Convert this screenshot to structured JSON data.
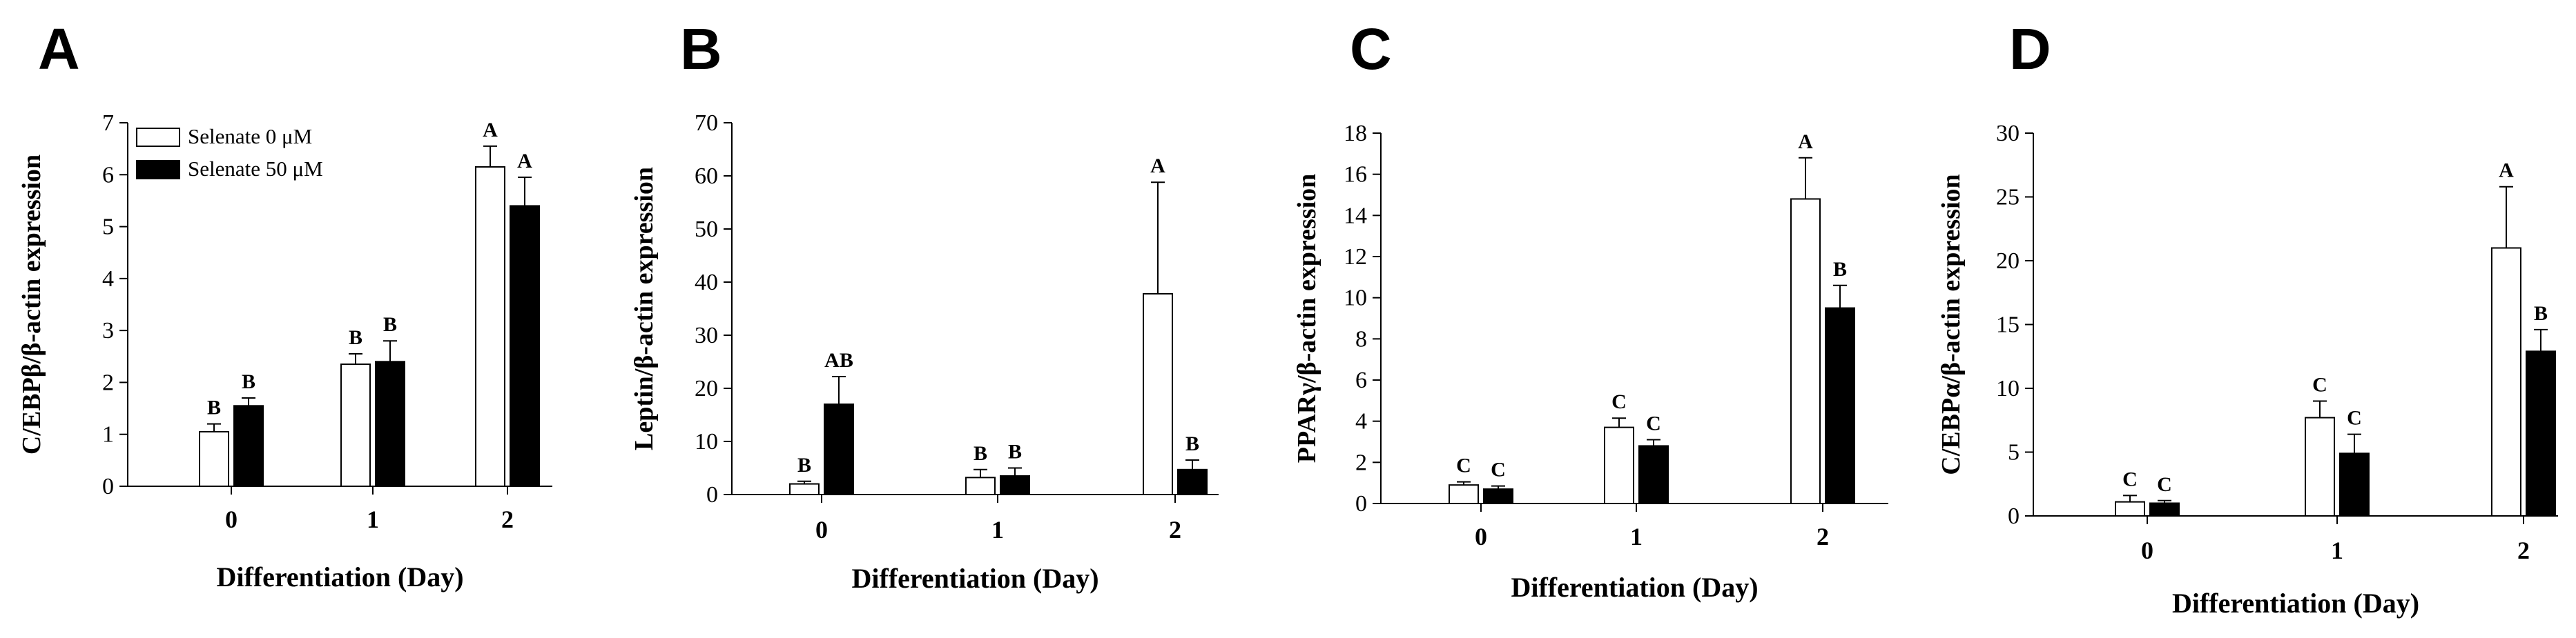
{
  "legend": {
    "items": [
      {
        "label": "Selenate  0 μM",
        "color": "#ffffff"
      },
      {
        "label": "Selenate 50 μM",
        "color": "#000000"
      }
    ]
  },
  "chart_data": [
    {
      "type": "bar",
      "panel": "A",
      "ylabel": "C/EBPβ/β-actin expression",
      "xlabel": "Differentiation (Day)",
      "categories": [
        "0",
        "1",
        "2"
      ],
      "ylim": [
        0,
        7
      ],
      "yticks": [
        0,
        1,
        2,
        3,
        4,
        5,
        6,
        7
      ],
      "series": [
        {
          "name": "Selenate  0 μM",
          "values": [
            1.05,
            2.35,
            6.15
          ],
          "errors": [
            0.15,
            0.2,
            0.4
          ],
          "labels": [
            "B",
            "B",
            "A"
          ]
        },
        {
          "name": "Selenate 50 μM",
          "values": [
            1.55,
            2.4,
            5.4
          ],
          "errors": [
            0.15,
            0.4,
            0.55
          ],
          "labels": [
            "B",
            "B",
            "A"
          ]
        }
      ]
    },
    {
      "type": "bar",
      "panel": "B",
      "ylabel": "Leptin/β-actin expression",
      "xlabel": "Differentiation (Day)",
      "categories": [
        "0",
        "1",
        "2"
      ],
      "ylim": [
        0,
        70
      ],
      "yticks": [
        0,
        10,
        20,
        30,
        40,
        50,
        60,
        70
      ],
      "series": [
        {
          "name": "Selenate  0 μM",
          "values": [
            2.0,
            3.2,
            37.8
          ],
          "errors": [
            0.5,
            1.5,
            21.0
          ],
          "labels": [
            "B",
            "B",
            "A"
          ]
        },
        {
          "name": "Selenate 50 μM",
          "values": [
            17.0,
            3.5,
            4.7
          ],
          "errors": [
            5.2,
            1.5,
            1.8
          ],
          "labels": [
            "AB",
            "B",
            "B"
          ]
        }
      ]
    },
    {
      "type": "bar",
      "panel": "C",
      "ylabel": "PPARγ/β-actin expression",
      "xlabel": "Differentiation (Day)",
      "categories": [
        "0",
        "1",
        "2"
      ],
      "ylim": [
        0,
        18
      ],
      "yticks": [
        0,
        2,
        4,
        6,
        8,
        10,
        12,
        14,
        16,
        18
      ],
      "series": [
        {
          "name": "Selenate  0 μM",
          "values": [
            0.9,
            3.7,
            14.8
          ],
          "errors": [
            0.15,
            0.45,
            2.0
          ],
          "labels": [
            "C",
            "C",
            "A"
          ]
        },
        {
          "name": "Selenate 50 μM",
          "values": [
            0.7,
            2.8,
            9.5
          ],
          "errors": [
            0.15,
            0.3,
            1.1
          ],
          "labels": [
            "C",
            "C",
            "B"
          ]
        }
      ]
    },
    {
      "type": "bar",
      "panel": "D",
      "ylabel": "C/EBPα/β-actin expression",
      "xlabel": "Differentiation (Day)",
      "categories": [
        "0",
        "1",
        "2"
      ],
      "ylim": [
        0,
        30
      ],
      "yticks": [
        0,
        5,
        10,
        15,
        20,
        25,
        30
      ],
      "series": [
        {
          "name": "Selenate  0 μM",
          "values": [
            1.1,
            7.7,
            21.0
          ],
          "errors": [
            0.5,
            1.3,
            4.8
          ],
          "labels": [
            "C",
            "C",
            "A"
          ]
        },
        {
          "name": "Selenate 50 μM",
          "values": [
            1.0,
            4.9,
            12.9
          ],
          "errors": [
            0.2,
            1.5,
            1.7
          ],
          "labels": [
            "C",
            "C",
            "B"
          ]
        }
      ]
    }
  ]
}
